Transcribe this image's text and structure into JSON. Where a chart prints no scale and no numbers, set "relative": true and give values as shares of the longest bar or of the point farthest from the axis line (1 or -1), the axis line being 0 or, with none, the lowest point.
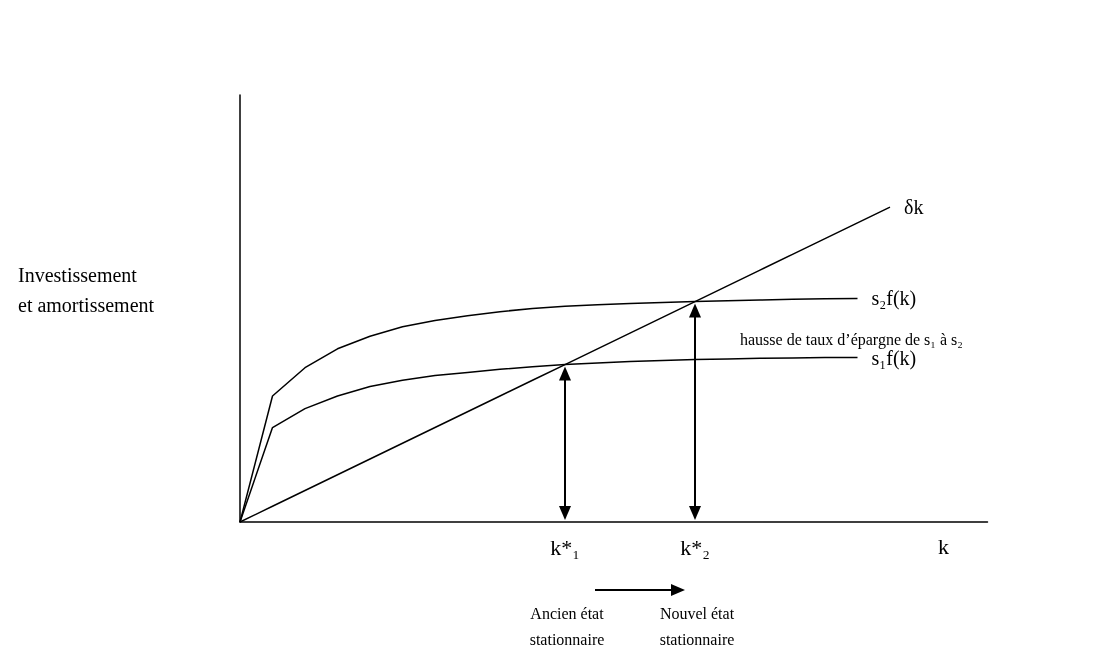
{
  "chart_data": {
    "type": "line",
    "relative": true,
    "xlabel": "k",
    "ylabel": "Investissement\net amortissement",
    "categories": [
      null,
      null,
      null,
      null,
      null,
      null,
      null,
      null,
      null,
      null,
      "k*₁",
      null,
      null,
      null,
      "k*₂",
      null,
      null,
      null,
      null,
      null,
      null,
      null,
      null,
      null
    ],
    "series": [
      {
        "name": "δk",
        "color": "#000000",
        "values": [
          0,
          0.05,
          0.1,
          0.15,
          0.2,
          0.25,
          0.3,
          0.35,
          0.4,
          0.45,
          0.5,
          0.55,
          0.6,
          0.65,
          0.7,
          0.75,
          0.8,
          0.85,
          0.9,
          0.95,
          1,
          null,
          null,
          null
        ]
      },
      {
        "name": "s₂f(k)",
        "color": "#000000",
        "values": [
          0,
          0.4,
          0.49,
          0.55,
          0.59,
          0.62,
          0.64,
          0.655,
          0.668,
          0.678,
          0.685,
          0.69,
          0.694,
          0.697,
          0.7,
          0.703,
          0.705,
          0.707,
          0.709,
          0.71,
          null,
          null,
          null,
          null
        ]
      },
      {
        "name": "s₁f(k)",
        "color": "#000000",
        "values": [
          0,
          0.3,
          0.36,
          0.4,
          0.43,
          0.45,
          0.465,
          0.475,
          0.485,
          0.493,
          0.5,
          0.505,
          0.51,
          0.513,
          0.516,
          0.518,
          0.52,
          0.521,
          0.522,
          0.522,
          null,
          null,
          null,
          null
        ]
      }
    ],
    "annotations": [
      "hausse de taux d’épargne de s₁ à s₂",
      "Ancien état\nstationnaire",
      "Nouvel état\nstationnaire"
    ],
    "marker": "none",
    "grid": false,
    "legend": false
  }
}
